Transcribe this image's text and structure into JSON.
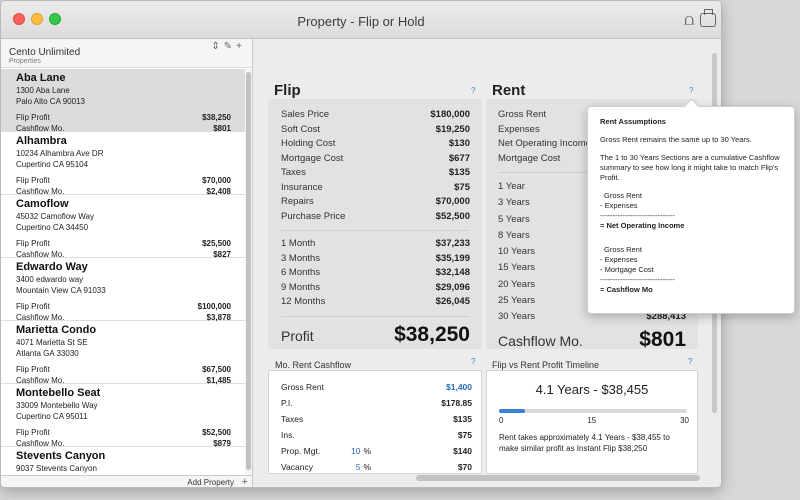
{
  "window": {
    "title": "Property - Flip or Hold"
  },
  "sidebar": {
    "account": "Cento Unlimited",
    "section_label": "Properties",
    "add_label": "Add Property",
    "properties": [
      {
        "name": "Aba Lane",
        "addr1": "1300 Aba Lane",
        "addr2": "Palo Alto CA 90013",
        "flip_label": "Flip Profit",
        "flip": "$38,250",
        "cash_label": "Cashflow Mo.",
        "cash": "$801"
      },
      {
        "name": "Alhambra",
        "addr1": "10234 Alhambra Ave DR",
        "addr2": "Cupertino CA 95104",
        "flip_label": "Flip Profit",
        "flip": "$70,000",
        "cash_label": "Cashflow Mo.",
        "cash": "$2,408"
      },
      {
        "name": "Camoflow",
        "addr1": "45032 Camoflow Way",
        "addr2": "Cupertino CA 34450",
        "flip_label": "Flip Profit",
        "flip": "$25,500",
        "cash_label": "Cashflow Mo.",
        "cash": "$827"
      },
      {
        "name": "Edwardo Way",
        "addr1": "3400 edwardo way",
        "addr2": "Mountain View CA 91033",
        "flip_label": "Flip Profit",
        "flip": "$100,000",
        "cash_label": "Cashflow Mo.",
        "cash": "$3,878"
      },
      {
        "name": "Marietta Condo",
        "addr1": "4071 Marietta St SE",
        "addr2": "Atlanta GA 33030",
        "flip_label": "Flip Profit",
        "flip": "$67,500",
        "cash_label": "Cashflow Mo.",
        "cash": "$1,485"
      },
      {
        "name": "Montebello Seat",
        "addr1": "33009 Montebello Way",
        "addr2": "Cupertino CA 95011",
        "flip_label": "Flip Profit",
        "flip": "$52,500",
        "cash_label": "Cashflow Mo.",
        "cash": "$879"
      },
      {
        "name": "Stevents Canyon",
        "addr1": "9037 Stevents Canyon",
        "addr2": "",
        "flip_label": "",
        "flip": "",
        "cash_label": "",
        "cash": ""
      }
    ]
  },
  "flip": {
    "title": "Flip",
    "help": "?",
    "costs": [
      [
        "Sales Price",
        "$180,000"
      ],
      [
        "Soft Cost",
        "$19,250"
      ],
      [
        "Holding Cost",
        "$130"
      ],
      [
        "Mortgage Cost",
        "$677"
      ],
      [
        "Taxes",
        "$135"
      ],
      [
        "Insurance",
        "$75"
      ],
      [
        "Repairs",
        "$70,000"
      ],
      [
        "Purchase Price",
        "$52,500"
      ]
    ],
    "periods": [
      [
        "1 Month",
        "$37,233"
      ],
      [
        "3 Months",
        "$35,199"
      ],
      [
        "6 Months",
        "$32,148"
      ],
      [
        "9 Months",
        "$29,096"
      ],
      [
        "12 Months",
        "$26,045"
      ]
    ],
    "profit_label": "Profit",
    "profit": "$38,250"
  },
  "rent": {
    "title": "Rent",
    "help": "?",
    "items": [
      "Gross Rent",
      "Expenses",
      "Net Operating Income",
      "Mortgage Cost"
    ],
    "years": [
      "1 Year",
      "3 Years",
      "5 Years",
      "8 Years",
      "10 Years",
      "15 Years",
      "20 Years",
      "25 Years",
      "30 Years"
    ],
    "year30_value": "$288,413",
    "cashflow_label": "Cashflow Mo.",
    "cashflow": "$801"
  },
  "mo_rent": {
    "title": "Mo. Rent Cashflow",
    "help": "?",
    "rows": [
      {
        "label": "Gross Rent",
        "pct": "",
        "pct_unit": "",
        "value": "$1,400",
        "blue": true
      },
      {
        "label": "P.I.",
        "pct": "",
        "pct_unit": "",
        "value": "$178.85",
        "blue": false
      },
      {
        "label": "Taxes",
        "pct": "",
        "pct_unit": "",
        "value": "$135",
        "blue": false
      },
      {
        "label": "Ins.",
        "pct": "",
        "pct_unit": "",
        "value": "$75",
        "blue": false
      },
      {
        "label": "Prop. Mgt.",
        "pct": "10",
        "pct_unit": "%",
        "value": "$140",
        "blue": false
      },
      {
        "label": "Vacancy",
        "pct": "5",
        "pct_unit": "%",
        "value": "$70",
        "blue": false
      }
    ]
  },
  "timeline": {
    "title": "Flip vs Rent Profit Timeline",
    "help": "?",
    "headline": "4.1 Years - $38,455",
    "progress_years": 4.1,
    "max_years": 30,
    "ticks": [
      "0",
      "15",
      "30"
    ],
    "note": "Rent takes approximately 4.1 Years - $38,455 to make similar profit as Instant Flip $38,250"
  },
  "popover": {
    "title": "Rent Assumptions",
    "p1": "Gross Rent remains the same up to 30 Years.",
    "p2": "The 1 to 30 Years Sections are a cumulative Cashflow summary to see how long it might take to match Flip's Profit.",
    "f1a": "Gross Rent",
    "f1b": "- Expenses",
    "f1c": "------------------------------",
    "f1d": "= Net Operating Income",
    "f2a": "Gross Rent",
    "f2b": "- Expenses",
    "f2c": "- Mortgage Cost",
    "f2d": "------------------------------",
    "f2e": "= Cashflow Mo"
  },
  "colors": {
    "accent": "#3a82d6",
    "link": "#2a6db8"
  }
}
